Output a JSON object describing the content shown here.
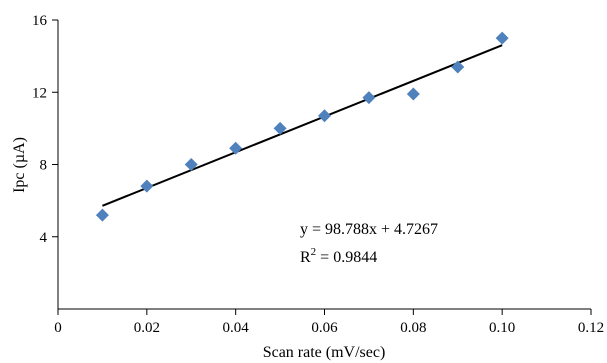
{
  "chart_data": {
    "type": "scatter",
    "xlabel": "Scan rate (mV/sec)",
    "ylabel": "Ipc (µA)",
    "xlim": [
      0,
      0.12
    ],
    "ylim": [
      0,
      16
    ],
    "xticks": [
      0,
      0.02,
      0.04,
      0.06,
      0.08,
      0.1,
      0.12
    ],
    "xtick_labels": [
      "0",
      "0.02",
      "0.04",
      "0.06",
      "0.08",
      "0.10",
      "0.12"
    ],
    "yticks": [
      4,
      8,
      12,
      16
    ],
    "ytick_labels": [
      "4",
      "8",
      "12",
      "16"
    ],
    "grid": false,
    "marker_color": "#4f81bd",
    "series": [
      {
        "x": [
          0.01,
          0.02,
          0.03,
          0.04,
          0.05,
          0.06,
          0.07,
          0.08,
          0.09,
          0.1
        ],
        "y": [
          5.2,
          6.8,
          8.0,
          8.9,
          10.0,
          10.7,
          11.7,
          11.9,
          13.4,
          15.0
        ]
      }
    ],
    "trendline": {
      "slope": 98.788,
      "intercept": 4.7267,
      "x_range": [
        0.01,
        0.1
      ],
      "equation": "y = 98.788x + 4.7267",
      "r2_prefix": "R",
      "r2_sup": "2",
      "r2_value": " = 0.9844"
    }
  }
}
